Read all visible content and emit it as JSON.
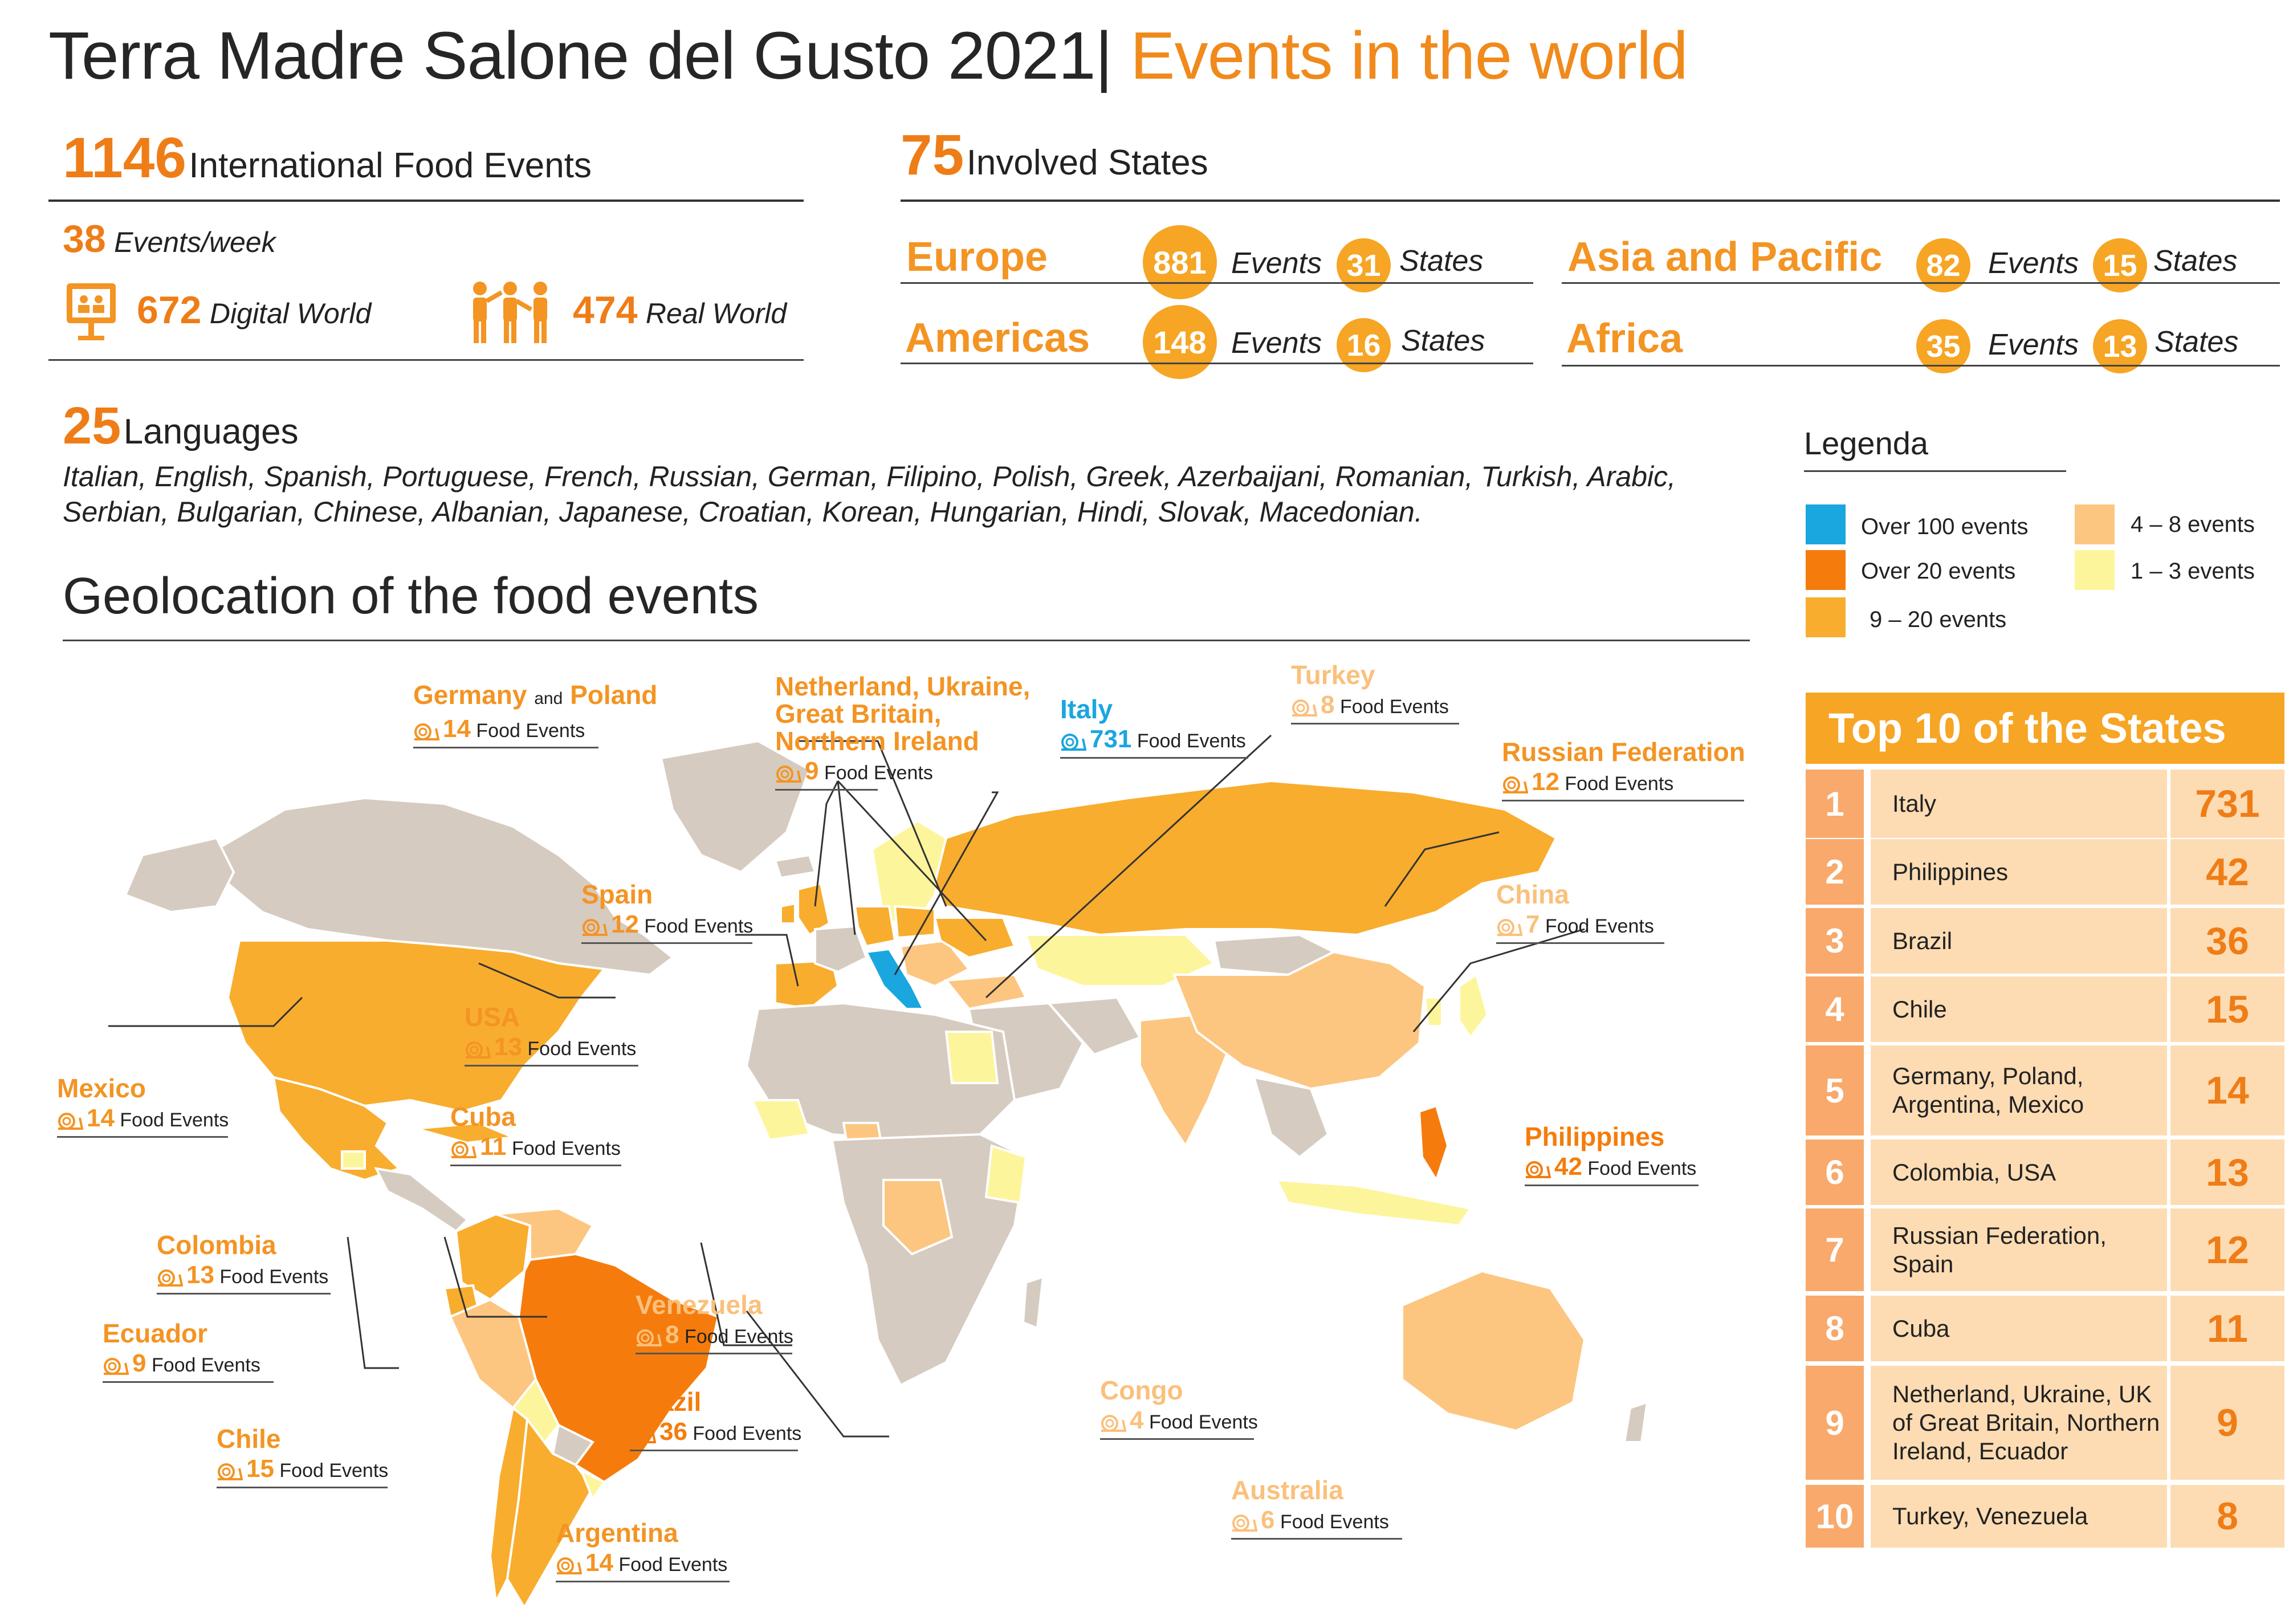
{
  "header": {
    "title_main": "Terra Madre Salone del Gusto 2021|",
    "title_sub": "Events in the world"
  },
  "stats": {
    "food_events_num": "1146",
    "food_events_label": "International Food Events",
    "events_week_num": "38",
    "events_week_label": "Events/week",
    "digital_num": "672",
    "digital_label": "Digital World",
    "real_num": "474",
    "real_label": "Real World",
    "states_num": "75",
    "states_label": "Involved States",
    "languages_num": "25",
    "languages_label": "Languages",
    "languages_list": "Italian, English, Spanish, Portuguese, French, Russian, German, Filipino, Polish, Greek, Azerbaijani, Romanian, Turkish, Arabic, Serbian, Bulgarian, Chinese, Albanian, Japanese, Croatian, Korean, Hungarian, Hindi, Slovak, Macedonian."
  },
  "regions": [
    {
      "name": "Europe",
      "events": "881",
      "states": "31"
    },
    {
      "name": "Americas",
      "events": "148",
      "states": "16"
    },
    {
      "name": "Asia and Pacific",
      "events": "82",
      "states": "15"
    },
    {
      "name": "Africa",
      "events": "35",
      "states": "13"
    }
  ],
  "region_labels": {
    "events": "Events",
    "states": "States"
  },
  "map": {
    "title": "Geolocation of the food events"
  },
  "legend": {
    "title": "Legenda",
    "items": [
      {
        "label": "Over 100 events",
        "color": "#1aa6df"
      },
      {
        "label": "Over 20 events",
        "color": "#f57c0c"
      },
      {
        "label": "9 – 20 events",
        "color": "#f8ad2e"
      },
      {
        "label": "4 – 8 events",
        "color": "#fcc681"
      },
      {
        "label": "1 – 3 events",
        "color": "#fdf59c"
      }
    ]
  },
  "top10": {
    "title": "Top 10 of the States",
    "rows": [
      {
        "rank": "1",
        "name": "Italy",
        "value": "731"
      },
      {
        "rank": "2",
        "name": "Philippines",
        "value": "42"
      },
      {
        "rank": "3",
        "name": "Brazil",
        "value": "36"
      },
      {
        "rank": "4",
        "name": "Chile",
        "value": "15"
      },
      {
        "rank": "5",
        "name": "Germany, Poland, Argentina, Mexico",
        "value": "14"
      },
      {
        "rank": "6",
        "name": "Colombia, USA",
        "value": "13"
      },
      {
        "rank": "7",
        "name": "Russian Federation, Spain",
        "value": "12"
      },
      {
        "rank": "8",
        "name": "Cuba",
        "value": "11"
      },
      {
        "rank": "9",
        "name": "Netherland, Ukraine, UK of Great Britain, Northern Ireland, Ecuador",
        "value": "9"
      },
      {
        "rank": "10",
        "name": "Turkey, Venezuela",
        "value": "8"
      }
    ]
  },
  "food_events_suffix": "Food Events",
  "map_labels": [
    {
      "id": "germany",
      "name": "Germany",
      "name2": "Poland",
      "joiner": "and",
      "count": "14",
      "color": "#f39423"
    },
    {
      "id": "netherland",
      "name": "Netherland, Ukraine,",
      "name2": "Great Britain,",
      "name3": "Northern Ireland",
      "count": "9",
      "color": "#f39423"
    },
    {
      "id": "italy",
      "name": "Italy",
      "count": "731",
      "color": "#1aa6df"
    },
    {
      "id": "turkey",
      "name": "Turkey",
      "count": "8",
      "color": "#fbc07c"
    },
    {
      "id": "russia",
      "name": "Russian Federation",
      "count": "12",
      "color": "#f39423"
    },
    {
      "id": "spain",
      "name": "Spain",
      "count": "12",
      "color": "#f39423"
    },
    {
      "id": "china",
      "name": "China",
      "count": "7",
      "color": "#fbc07c"
    },
    {
      "id": "usa",
      "name": "USA",
      "count": "13",
      "color": "#f39423"
    },
    {
      "id": "mexico",
      "name": "Mexico",
      "count": "14",
      "color": "#f39423"
    },
    {
      "id": "cuba",
      "name": "Cuba",
      "count": "11",
      "color": "#f39423"
    },
    {
      "id": "philippines",
      "name": "Philippines",
      "count": "42",
      "color": "#f57c0c"
    },
    {
      "id": "colombia",
      "name": "Colombia",
      "count": "13",
      "color": "#f39423"
    },
    {
      "id": "venezuela",
      "name": "Venezuela",
      "count": "8",
      "color": "#fbc07c"
    },
    {
      "id": "ecuador",
      "name": "Ecuador",
      "count": "9",
      "color": "#f39423"
    },
    {
      "id": "brazil",
      "name": "Brazil",
      "count": "36",
      "color": "#f57c0c"
    },
    {
      "id": "congo",
      "name": "Congo",
      "count": "4",
      "color": "#fbc07c"
    },
    {
      "id": "chile",
      "name": "Chile",
      "count": "15",
      "color": "#f39423"
    },
    {
      "id": "australia",
      "name": "Australia",
      "count": "6",
      "color": "#fbc07c"
    },
    {
      "id": "argentina",
      "name": "Argentina",
      "count": "14",
      "color": "#f39423"
    }
  ]
}
